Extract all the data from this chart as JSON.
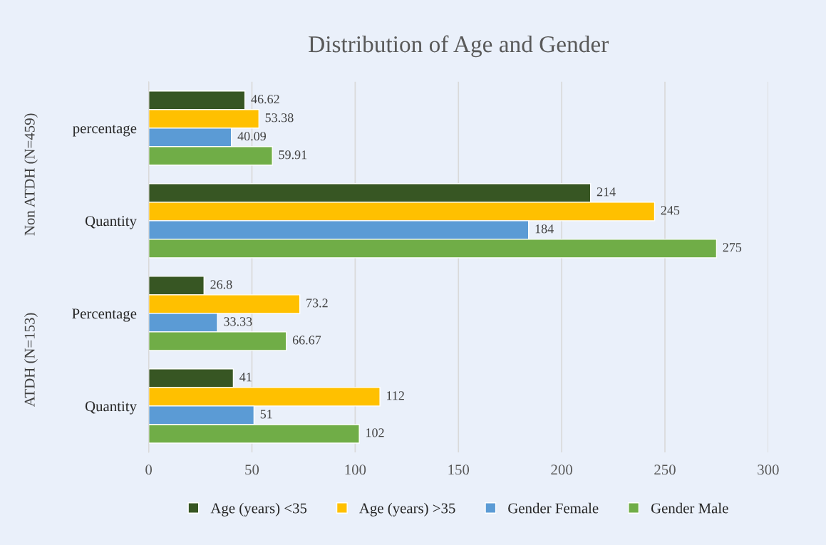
{
  "chart_data": {
    "type": "bar",
    "orientation": "horizontal",
    "title": "Distribution of Age and Gender",
    "categories": [
      "percentage",
      "Quantity",
      "Percentage",
      "Quantity"
    ],
    "series": [
      {
        "name": "Age (years) <35",
        "color": "#375623",
        "values": [
          46.62,
          214,
          26.8,
          41
        ]
      },
      {
        "name": "Age (years) >35",
        "color": "#ffc000",
        "values": [
          53.38,
          245,
          73.2,
          112
        ]
      },
      {
        "name": "Gender Female",
        "color": "#5b9bd5",
        "values": [
          40.09,
          184,
          33.33,
          51
        ]
      },
      {
        "name": "Gender Male",
        "color": "#70ad47",
        "values": [
          59.91,
          275,
          66.67,
          102
        ]
      }
    ],
    "annotations": [
      "Non ATDH (N=459)",
      "ATDH (N=153)"
    ],
    "xlim": [
      0,
      300
    ],
    "xticks": [
      0,
      50,
      100,
      150,
      200,
      250,
      300
    ],
    "grid": "x",
    "legend": "bottom",
    "data_labels": true
  }
}
